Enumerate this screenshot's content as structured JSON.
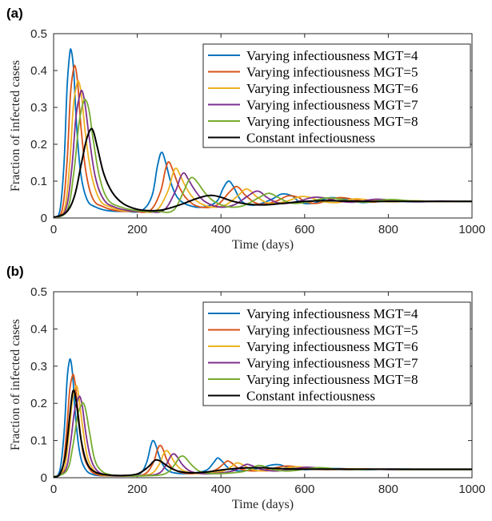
{
  "chart_data": [
    {
      "type": "line",
      "panel": "(a)",
      "xlabel": "Time (days)",
      "ylabel": "Fraction of infected cases",
      "xlim": [
        0,
        1000
      ],
      "ylim": [
        0,
        0.5
      ],
      "xticks": [
        "0",
        "200",
        "400",
        "600",
        "800",
        "1000"
      ],
      "yticks": [
        "0",
        "0.1",
        "0.2",
        "0.3",
        "0.4",
        "0.5"
      ],
      "legend_position": "top-right",
      "grid": false,
      "series": [
        {
          "name": "Varying infectiousness MGT=4",
          "color": "#0072BD",
          "x": [
            0,
            15,
            25,
            32,
            38,
            42,
            48,
            55,
            65,
            80,
            100,
            130,
            170,
            210,
            235,
            248,
            258,
            268,
            282,
            300,
            330,
            360,
            390,
            405,
            418,
            430,
            450,
            480,
            520,
            545,
            570,
            590,
            620,
            660,
            700,
            740,
            780,
            820,
            860,
            900,
            950,
            1000
          ],
          "y": [
            0.002,
            0.02,
            0.15,
            0.35,
            0.44,
            0.455,
            0.4,
            0.25,
            0.12,
            0.05,
            0.03,
            0.02,
            0.018,
            0.02,
            0.06,
            0.14,
            0.178,
            0.15,
            0.09,
            0.05,
            0.032,
            0.03,
            0.045,
            0.08,
            0.1,
            0.085,
            0.045,
            0.035,
            0.05,
            0.065,
            0.06,
            0.042,
            0.04,
            0.055,
            0.05,
            0.042,
            0.048,
            0.046,
            0.044,
            0.045,
            0.045,
            0.045
          ]
        },
        {
          "name": "Varying infectiousness MGT=5",
          "color": "#D95319",
          "x": [
            0,
            20,
            32,
            40,
            47,
            52,
            58,
            66,
            78,
            95,
            120,
            150,
            190,
            230,
            255,
            267,
            275,
            285,
            300,
            320,
            350,
            390,
            420,
            435,
            445,
            460,
            490,
            530,
            560,
            585,
            600,
            630,
            680,
            720,
            760,
            800,
            850,
            900,
            950,
            1000
          ],
          "y": [
            0.002,
            0.02,
            0.15,
            0.33,
            0.4,
            0.41,
            0.36,
            0.24,
            0.12,
            0.05,
            0.03,
            0.02,
            0.018,
            0.02,
            0.07,
            0.13,
            0.152,
            0.13,
            0.085,
            0.05,
            0.03,
            0.035,
            0.07,
            0.085,
            0.08,
            0.06,
            0.038,
            0.045,
            0.06,
            0.056,
            0.045,
            0.04,
            0.055,
            0.05,
            0.043,
            0.048,
            0.046,
            0.045,
            0.045,
            0.045
          ]
        },
        {
          "name": "Varying infectiousness MGT=6",
          "color": "#EDB120",
          "x": [
            0,
            25,
            38,
            47,
            55,
            60,
            67,
            76,
            90,
            110,
            135,
            165,
            205,
            245,
            272,
            285,
            293,
            303,
            318,
            340,
            375,
            410,
            440,
            458,
            470,
            485,
            515,
            555,
            590,
            615,
            640,
            680,
            720,
            760,
            810,
            860,
            910,
            960,
            1000
          ],
          "y": [
            0.002,
            0.02,
            0.14,
            0.3,
            0.36,
            0.37,
            0.33,
            0.23,
            0.12,
            0.05,
            0.03,
            0.02,
            0.018,
            0.02,
            0.07,
            0.12,
            0.135,
            0.115,
            0.08,
            0.048,
            0.03,
            0.035,
            0.06,
            0.078,
            0.074,
            0.058,
            0.04,
            0.045,
            0.058,
            0.055,
            0.045,
            0.042,
            0.052,
            0.048,
            0.044,
            0.047,
            0.045,
            0.045,
            0.045
          ]
        },
        {
          "name": "Varying infectiousness MGT=7",
          "color": "#7E2F8E",
          "x": [
            0,
            28,
            43,
            53,
            62,
            68,
            75,
            85,
            100,
            120,
            145,
            180,
            220,
            262,
            290,
            303,
            312,
            322,
            338,
            360,
            395,
            430,
            462,
            482,
            495,
            510,
            540,
            580,
            620,
            650,
            680,
            720,
            770,
            820,
            870,
            920,
            970,
            1000
          ],
          "y": [
            0.002,
            0.02,
            0.13,
            0.27,
            0.33,
            0.345,
            0.31,
            0.22,
            0.11,
            0.05,
            0.03,
            0.02,
            0.018,
            0.02,
            0.07,
            0.11,
            0.122,
            0.105,
            0.075,
            0.046,
            0.03,
            0.035,
            0.058,
            0.072,
            0.07,
            0.056,
            0.04,
            0.044,
            0.056,
            0.054,
            0.046,
            0.043,
            0.051,
            0.047,
            0.044,
            0.046,
            0.045,
            0.045
          ]
        },
        {
          "name": "Varying infectiousness MGT=8",
          "color": "#77AC30",
          "x": [
            0,
            32,
            48,
            60,
            70,
            77,
            85,
            95,
            110,
            130,
            160,
            200,
            245,
            285,
            310,
            322,
            332,
            345,
            362,
            385,
            420,
            455,
            490,
            510,
            522,
            540,
            570,
            610,
            650,
            680,
            710,
            750,
            800,
            850,
            900,
            950,
            1000
          ],
          "y": [
            0.002,
            0.02,
            0.12,
            0.25,
            0.31,
            0.32,
            0.29,
            0.21,
            0.11,
            0.05,
            0.03,
            0.02,
            0.018,
            0.02,
            0.07,
            0.1,
            0.11,
            0.095,
            0.068,
            0.044,
            0.03,
            0.034,
            0.055,
            0.066,
            0.065,
            0.054,
            0.04,
            0.044,
            0.054,
            0.052,
            0.046,
            0.043,
            0.05,
            0.047,
            0.045,
            0.045,
            0.045
          ]
        },
        {
          "name": "Constant infectiousness",
          "color": "#000000",
          "x": [
            0,
            30,
            50,
            65,
            78,
            88,
            95,
            105,
            120,
            140,
            165,
            195,
            225,
            260,
            300,
            340,
            370,
            395,
            430,
            470,
            510,
            550,
            600,
            650,
            700,
            750,
            800,
            850,
            900,
            950,
            1000
          ],
          "y": [
            0.002,
            0.015,
            0.06,
            0.14,
            0.21,
            0.24,
            0.235,
            0.19,
            0.12,
            0.07,
            0.04,
            0.025,
            0.02,
            0.022,
            0.035,
            0.052,
            0.061,
            0.058,
            0.045,
            0.037,
            0.036,
            0.04,
            0.045,
            0.047,
            0.046,
            0.045,
            0.045,
            0.045,
            0.045,
            0.045,
            0.045
          ]
        }
      ]
    },
    {
      "type": "line",
      "panel": "(b)",
      "xlabel": "Time (days)",
      "ylabel": "Fraction of infected cases",
      "xlim": [
        0,
        1000
      ],
      "ylim": [
        0,
        0.5
      ],
      "xticks": [
        "0",
        "200",
        "400",
        "600",
        "800",
        "1000"
      ],
      "yticks": [
        "0",
        "0.1",
        "0.2",
        "0.3",
        "0.4",
        "0.5"
      ],
      "legend_position": "top-right",
      "grid": false,
      "series": [
        {
          "name": "Varying infectiousness MGT=4",
          "color": "#0072BD",
          "x": [
            0,
            15,
            25,
            32,
            37,
            41,
            46,
            52,
            62,
            75,
            95,
            130,
            170,
            205,
            222,
            232,
            238,
            245,
            255,
            270,
            295,
            330,
            365,
            382,
            392,
            402,
            420,
            450,
            490,
            520,
            540,
            560,
            600,
            650,
            700,
            750,
            800,
            850,
            900,
            950,
            1000
          ],
          "y": [
            0.002,
            0.02,
            0.12,
            0.26,
            0.31,
            0.315,
            0.27,
            0.17,
            0.07,
            0.025,
            0.008,
            0.005,
            0.005,
            0.01,
            0.04,
            0.085,
            0.1,
            0.085,
            0.05,
            0.022,
            0.012,
            0.012,
            0.02,
            0.04,
            0.053,
            0.045,
            0.025,
            0.018,
            0.025,
            0.034,
            0.035,
            0.028,
            0.022,
            0.025,
            0.024,
            0.022,
            0.023,
            0.023,
            0.022,
            0.022,
            0.022
          ]
        },
        {
          "name": "Varying infectiousness MGT=5",
          "color": "#D95319",
          "x": [
            0,
            20,
            30,
            38,
            44,
            48,
            53,
            60,
            70,
            85,
            105,
            140,
            180,
            218,
            238,
            248,
            255,
            262,
            272,
            288,
            315,
            350,
            385,
            405,
            415,
            425,
            445,
            480,
            520,
            550,
            575,
            600,
            650,
            700,
            760,
            820,
            880,
            940,
            1000
          ],
          "y": [
            0.002,
            0.02,
            0.11,
            0.23,
            0.27,
            0.275,
            0.24,
            0.16,
            0.07,
            0.025,
            0.008,
            0.005,
            0.005,
            0.01,
            0.04,
            0.075,
            0.087,
            0.075,
            0.045,
            0.022,
            0.012,
            0.012,
            0.02,
            0.036,
            0.045,
            0.04,
            0.024,
            0.018,
            0.024,
            0.031,
            0.03,
            0.025,
            0.022,
            0.024,
            0.023,
            0.023,
            0.022,
            0.022,
            0.022
          ]
        },
        {
          "name": "Varying infectiousness MGT=6",
          "color": "#EDB120",
          "x": [
            0,
            24,
            35,
            44,
            51,
            56,
            61,
            69,
            80,
            95,
            115,
            150,
            190,
            232,
            252,
            262,
            270,
            278,
            290,
            308,
            335,
            370,
            405,
            428,
            438,
            450,
            472,
            505,
            545,
            575,
            600,
            625,
            670,
            720,
            780,
            840,
            900,
            960,
            1000
          ],
          "y": [
            0.002,
            0.02,
            0.1,
            0.2,
            0.24,
            0.245,
            0.21,
            0.14,
            0.06,
            0.022,
            0.008,
            0.005,
            0.005,
            0.01,
            0.035,
            0.062,
            0.073,
            0.063,
            0.04,
            0.02,
            0.012,
            0.012,
            0.018,
            0.032,
            0.04,
            0.036,
            0.023,
            0.018,
            0.024,
            0.029,
            0.028,
            0.024,
            0.022,
            0.024,
            0.023,
            0.022,
            0.022,
            0.022,
            0.022
          ]
        },
        {
          "name": "Varying infectiousness MGT=7",
          "color": "#7E2F8E",
          "x": [
            0,
            28,
            40,
            50,
            58,
            63,
            69,
            77,
            88,
            103,
            125,
            160,
            200,
            248,
            268,
            280,
            288,
            296,
            308,
            326,
            355,
            390,
            428,
            450,
            462,
            475,
            498,
            530,
            570,
            600,
            625,
            650,
            700,
            750,
            810,
            870,
            930,
            1000
          ],
          "y": [
            0.002,
            0.02,
            0.09,
            0.18,
            0.21,
            0.218,
            0.19,
            0.12,
            0.055,
            0.02,
            0.008,
            0.005,
            0.005,
            0.01,
            0.033,
            0.058,
            0.064,
            0.055,
            0.035,
            0.018,
            0.011,
            0.012,
            0.018,
            0.03,
            0.036,
            0.032,
            0.022,
            0.018,
            0.023,
            0.028,
            0.027,
            0.024,
            0.022,
            0.023,
            0.022,
            0.022,
            0.022,
            0.022
          ]
        },
        {
          "name": "Varying infectiousness MGT=8",
          "color": "#77AC30",
          "x": [
            0,
            32,
            46,
            57,
            66,
            72,
            78,
            87,
            98,
            113,
            135,
            170,
            215,
            265,
            288,
            300,
            310,
            318,
            332,
            350,
            380,
            415,
            455,
            478,
            490,
            505,
            528,
            560,
            600,
            630,
            655,
            680,
            730,
            780,
            840,
            900,
            960,
            1000
          ],
          "y": [
            0.002,
            0.02,
            0.085,
            0.165,
            0.195,
            0.2,
            0.175,
            0.115,
            0.05,
            0.02,
            0.008,
            0.005,
            0.005,
            0.01,
            0.033,
            0.054,
            0.058,
            0.05,
            0.032,
            0.017,
            0.011,
            0.012,
            0.017,
            0.028,
            0.033,
            0.03,
            0.021,
            0.018,
            0.023,
            0.027,
            0.026,
            0.023,
            0.022,
            0.023,
            0.022,
            0.022,
            0.022,
            0.022
          ]
        },
        {
          "name": "Constant infectiousness",
          "color": "#000000",
          "x": [
            0,
            15,
            28,
            38,
            44,
            48,
            52,
            58,
            66,
            78,
            95,
            125,
            165,
            200,
            225,
            238,
            245,
            255,
            265,
            280,
            300,
            330,
            370,
            410,
            450,
            490,
            530,
            580,
            630,
            700,
            780,
            860,
            940,
            1000
          ],
          "y": [
            0.002,
            0.01,
            0.06,
            0.16,
            0.22,
            0.235,
            0.22,
            0.17,
            0.1,
            0.045,
            0.018,
            0.008,
            0.006,
            0.01,
            0.028,
            0.043,
            0.048,
            0.045,
            0.037,
            0.026,
            0.017,
            0.013,
            0.016,
            0.022,
            0.026,
            0.027,
            0.025,
            0.023,
            0.023,
            0.023,
            0.023,
            0.023,
            0.023,
            0.023
          ]
        }
      ]
    }
  ]
}
